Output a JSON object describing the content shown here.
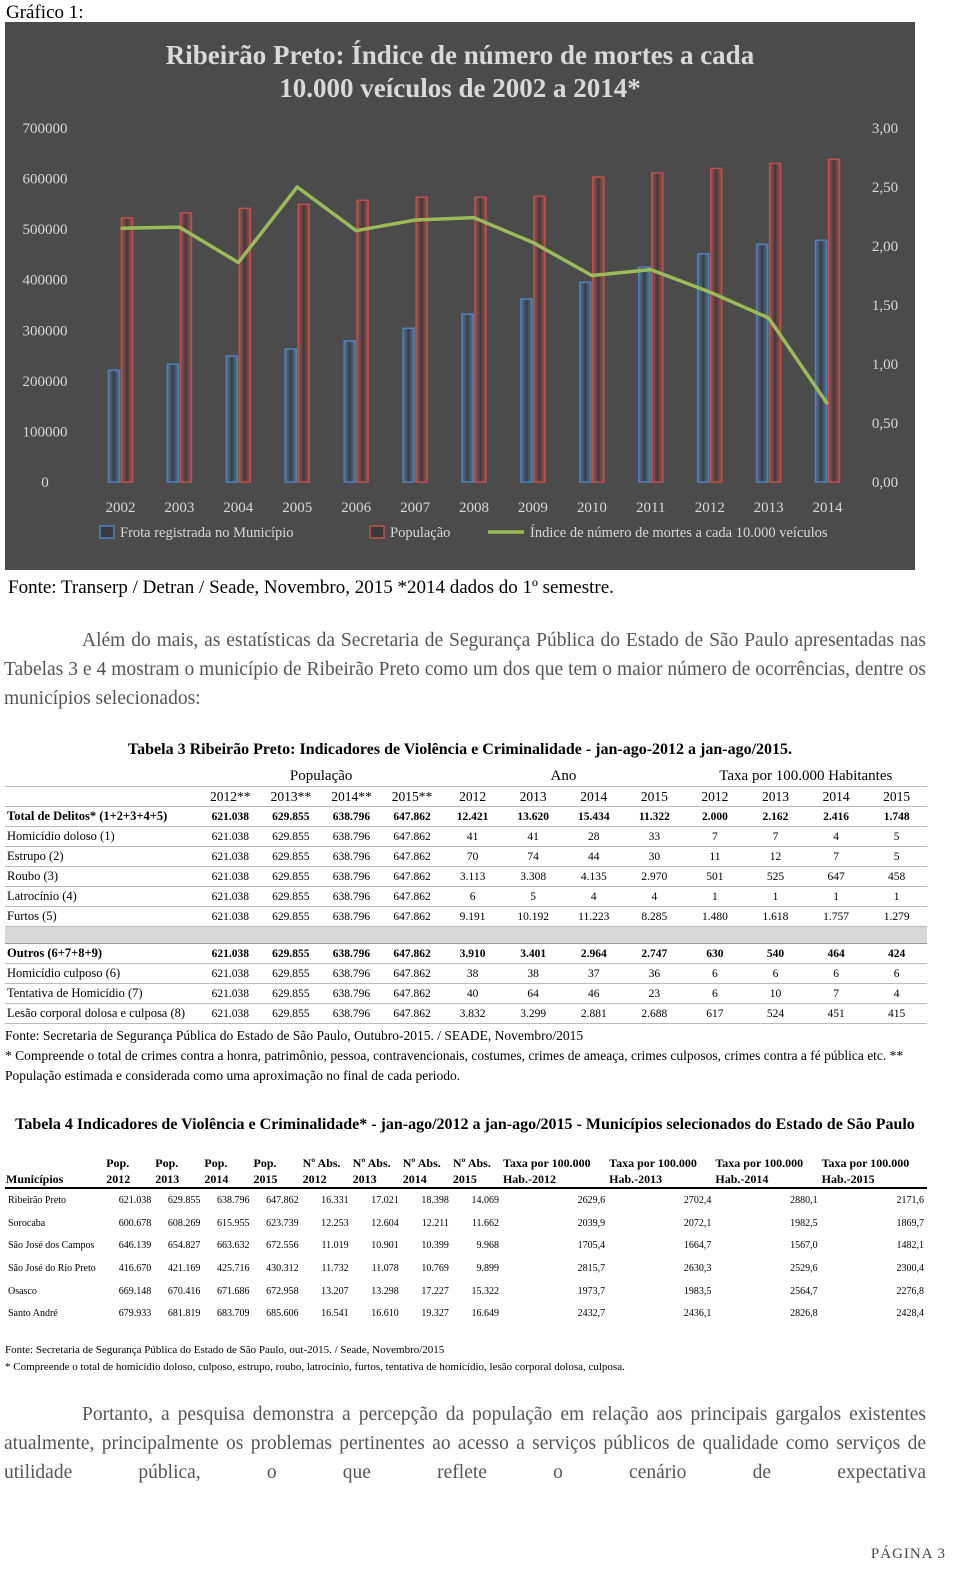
{
  "header": {
    "label": "Gráfico 1:"
  },
  "chart_data": {
    "type": "bar",
    "title": [
      "Ribeirão Preto: Índice de número de mortes a cada",
      "10.000 veículos de 2002 a 2014*"
    ],
    "categories": [
      "2002",
      "2003",
      "2004",
      "2005",
      "2006",
      "2007",
      "2008",
      "2009",
      "2010",
      "2011",
      "2012",
      "2013",
      "2014"
    ],
    "series": [
      {
        "name": "Frota registrada no Município",
        "type": "bar",
        "color": "#4f81bd",
        "values": [
          221000,
          233000,
          249000,
          263000,
          279000,
          304000,
          332000,
          362000,
          395000,
          425000,
          451000,
          470000,
          478000
        ]
      },
      {
        "name": "População",
        "type": "bar",
        "color": "#c0504d",
        "values": [
          522000,
          532000,
          541000,
          549000,
          557000,
          563000,
          563000,
          565000,
          603000,
          611000,
          620000,
          630000,
          638000
        ]
      },
      {
        "name": "Índice de número de mortes a cada 10.000 veículos",
        "type": "line",
        "axis": "y2",
        "color": "#9bbb59",
        "values": [
          2.15,
          2.16,
          1.86,
          2.5,
          2.13,
          2.22,
          2.24,
          2.03,
          1.75,
          1.8,
          1.61,
          1.39,
          0.66
        ]
      }
    ],
    "ylim": [
      0,
      700000
    ],
    "yticks": [
      0,
      100000,
      200000,
      300000,
      400000,
      500000,
      600000,
      700000
    ],
    "y2lim": [
      0,
      3
    ],
    "y2ticks": [
      {
        "value": 0,
        "label": "0,00"
      },
      {
        "value": 0.5,
        "label": "0,50"
      },
      {
        "value": 1,
        "label": "1,00"
      },
      {
        "value": 1.5,
        "label": "1,50"
      },
      {
        "value": 2,
        "label": "2,00"
      },
      {
        "value": 2.5,
        "label": "2,50"
      },
      {
        "value": 3,
        "label": "3,00"
      }
    ],
    "legend": "bottom",
    "background": "#4b4b4b"
  },
  "chart_source": "Fonte: Transerp / Detran / Seade, Novembro, 2015 *2014 dados do 1º semestre.",
  "paragraph1": "Além do mais, as estatísticas da Secretaria de Segurança Pública do Estado de São Paulo apresentadas nas Tabelas 3 e 4 mostram o município de Ribeirão Preto como um dos que tem o maior número de ocorrências, dentre os municípios selecionados:",
  "table3": {
    "title": "Tabela 3 Ribeirão Preto: Indicadores de Violência e Criminalidade - jan-ago-2012 a jan-ago/2015.",
    "groups": [
      "População",
      "Ano",
      "Taxa por 100.000 Habitantes"
    ],
    "columns": [
      "2012**",
      "2013**",
      "2014**",
      "2015**",
      "2012",
      "2013",
      "2014",
      "2015",
      "2012",
      "2013",
      "2014",
      "2015"
    ],
    "sections": [
      {
        "rows": [
          [
            "Total de Delitos* (1+2+3+4+5)",
            "621.038",
            "629.855",
            "638.796",
            "647.862",
            "12.421",
            "13.620",
            "15.434",
            "11.322",
            "2.000",
            "2.162",
            "2.416",
            "1.748"
          ],
          [
            "Homicídio doloso (1)",
            "621.038",
            "629.855",
            "638.796",
            "647.862",
            "41",
            "41",
            "28",
            "33",
            "7",
            "7",
            "4",
            "5"
          ],
          [
            "Estrupo (2)",
            "621.038",
            "629.855",
            "638.796",
            "647.862",
            "70",
            "74",
            "44",
            "30",
            "11",
            "12",
            "7",
            "5"
          ],
          [
            "Roubo (3)",
            "621.038",
            "629.855",
            "638.796",
            "647.862",
            "3.113",
            "3.308",
            "4.135",
            "2.970",
            "501",
            "525",
            "647",
            "458"
          ],
          [
            "Latrocínio (4)",
            "621.038",
            "629.855",
            "638.796",
            "647.862",
            "6",
            "5",
            "4",
            "4",
            "1",
            "1",
            "1",
            "1"
          ],
          [
            "Furtos (5)",
            "621.038",
            "629.855",
            "638.796",
            "647.862",
            "9.191",
            "10.192",
            "11.223",
            "8.285",
            "1.480",
            "1.618",
            "1.757",
            "1.279"
          ]
        ]
      },
      {
        "rows": [
          [
            "Outros (6+7+8+9)",
            "621.038",
            "629.855",
            "638.796",
            "647.862",
            "3.910",
            "3.401",
            "2.964",
            "2.747",
            "630",
            "540",
            "464",
            "424"
          ],
          [
            "Homicídio culposo (6)",
            "621.038",
            "629.855",
            "638.796",
            "647.862",
            "38",
            "38",
            "37",
            "36",
            "6",
            "6",
            "6",
            "6"
          ],
          [
            "Tentativa de Homicídio (7)",
            "621.038",
            "629.855",
            "638.796",
            "647.862",
            "40",
            "64",
            "46",
            "23",
            "6",
            "10",
            "7",
            "4"
          ],
          [
            "Lesão corporal dolosa e culposa (8)",
            "621.038",
            "629.855",
            "638.796",
            "647.862",
            "3.832",
            "3.299",
            "2.881",
            "2.688",
            "617",
            "524",
            "451",
            "415"
          ]
        ]
      }
    ],
    "notes": [
      "Fonte: Secretaria de Segurança Pública do Estado de São Paulo, Outubro-2015. / SEADE, Novembro/2015",
      "* Compreende o total de crimes contra a honra, patrimônio, pessoa, contravencionais, costumes, crimes de ameaça, crimes culposos, crimes contra a fé pública etc. ** População estimada e considerada como uma aproximação no final de cada periodo."
    ]
  },
  "table4": {
    "title": "Tabela 4 Indicadores de Violência e Criminalidade* - jan-ago/2012 a jan-ago/2015 - Municípios selecionados do Estado de São Paulo",
    "columns": [
      "Municípios",
      "Pop. 2012",
      "Pop. 2013",
      "Pop. 2014",
      "Pop. 2015",
      "Nº Abs. 2012",
      "Nº Abs. 2013",
      "Nº Abs. 2014",
      "Nº Abs. 2015",
      "Taxa por 100.000 Hab.-2012",
      "Taxa por 100.000 Hab.-2013",
      "Taxa por 100.000 Hab.-2014",
      "Taxa por 100.000 Hab.-2015"
    ],
    "rows": [
      [
        "Ribeirão Preto",
        "621.038",
        "629.855",
        "638.796",
        "647.862",
        "16.331",
        "17.021",
        "18.398",
        "14.069",
        "2629,6",
        "2702,4",
        "2880,1",
        "2171,6"
      ],
      [
        "Sorocaba",
        "600.678",
        "608.269",
        "615.955",
        "623.739",
        "12.253",
        "12.604",
        "12.211",
        "11.662",
        "2039,9",
        "2072,1",
        "1982,5",
        "1869,7"
      ],
      [
        "São José dos Campos",
        "646.139",
        "654.827",
        "663.632",
        "672.556",
        "11.019",
        "10.901",
        "10.399",
        "9.968",
        "1705,4",
        "1664,7",
        "1567,0",
        "1482,1"
      ],
      [
        "São José do Rio Preto",
        "416.670",
        "421.169",
        "425.716",
        "430.312",
        "11.732",
        "11.078",
        "10.769",
        "9.899",
        "2815,7",
        "2630,3",
        "2529,6",
        "2300,4"
      ],
      [
        "Osasco",
        "669.148",
        "670.416",
        "671.686",
        "672.958",
        "13.207",
        "13.298",
        "17.227",
        "15.322",
        "1973,7",
        "1983,5",
        "2564,7",
        "2276,8"
      ],
      [
        "Santo André",
        "679.933",
        "681.819",
        "683.709",
        "685.606",
        "16.541",
        "16.610",
        "19.327",
        "16.649",
        "2432,7",
        "2436,1",
        "2826,8",
        "2428,4"
      ]
    ],
    "notes": [
      "Fonte: Secretaria de Segurança Pública do Estado de São Paulo, out-2015. / Seade, Novembro/2015",
      "* Compreende o total de homicídio doloso, culposo, estrupo, roubo, latrocínio, furtos, tentativa de homicídio, lesão corporal dolosa, culposa."
    ]
  },
  "paragraph2": "Portanto, a pesquisa demonstra a percepção da população em relação aos principais gargalos existentes atualmente, principalmente os problemas pertinentes ao acesso a serviços públicos de qualidade como serviços de utilidade pública, o que reflete o cenário de expectativa",
  "footer": {
    "page": "PÁGINA 3"
  }
}
